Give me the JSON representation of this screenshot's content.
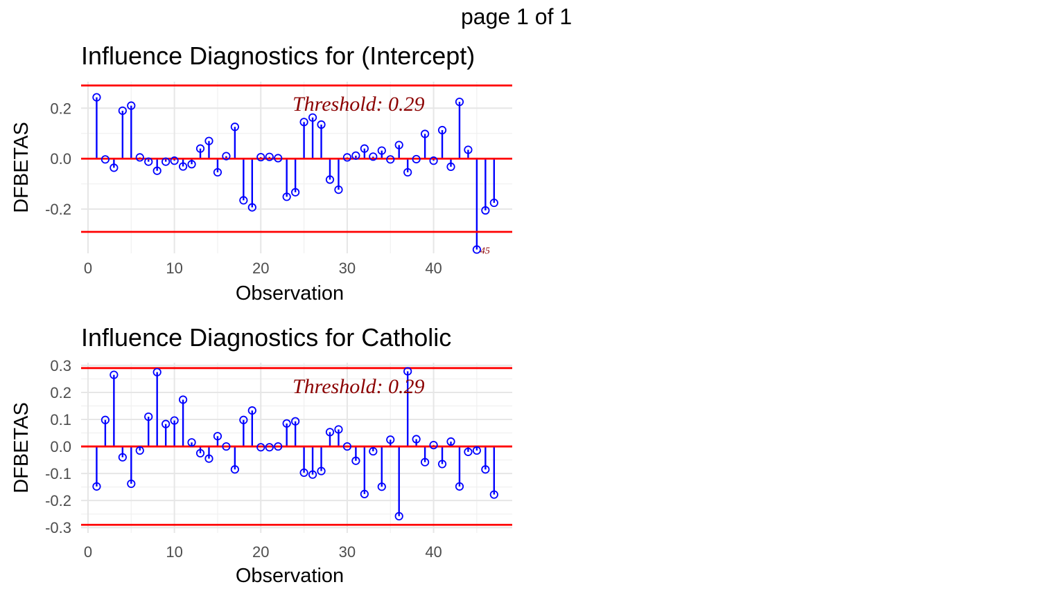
{
  "page_label": "page 1 of 1",
  "chart_data": [
    {
      "type": "lollipop",
      "title": "Influence Diagnostics for (Intercept)",
      "xlabel": "Observation",
      "ylabel": "DFBETAS",
      "xlim": [
        -0.8,
        49.1
      ],
      "ylim": [
        -0.375,
        0.305
      ],
      "x_ticks": [
        "0",
        "10",
        "20",
        "30",
        "40"
      ],
      "y_ticks": [
        "-0.2",
        "0.0",
        "0.2"
      ],
      "threshold": 0.29,
      "threshold_label": "Threshold: 0.29",
      "outlier_labels": [
        {
          "x": 45,
          "label": "45"
        }
      ],
      "colors": {
        "stem": "#0000ff",
        "threshold": "#ff0000"
      },
      "x": [
        1,
        2,
        3,
        4,
        5,
        6,
        7,
        8,
        9,
        10,
        11,
        12,
        13,
        14,
        15,
        16,
        17,
        18,
        19,
        20,
        21,
        22,
        23,
        24,
        25,
        26,
        27,
        28,
        29,
        30,
        31,
        32,
        33,
        34,
        35,
        36,
        37,
        38,
        39,
        40,
        41,
        42,
        43,
        44,
        45,
        46,
        47
      ],
      "values": [
        0.243,
        -0.003,
        -0.036,
        0.19,
        0.21,
        0.005,
        -0.012,
        -0.048,
        -0.012,
        -0.008,
        -0.031,
        -0.022,
        0.04,
        0.07,
        -0.054,
        0.01,
        0.126,
        -0.165,
        -0.193,
        0.006,
        0.007,
        0.002,
        -0.151,
        -0.133,
        0.145,
        0.163,
        0.135,
        -0.083,
        -0.123,
        0.005,
        0.012,
        0.04,
        0.008,
        0.032,
        -0.003,
        0.054,
        -0.054,
        -0.002,
        0.098,
        -0.008,
        0.113,
        -0.032,
        0.225,
        0.035,
        -0.36,
        -0.205,
        -0.175
      ]
    },
    {
      "type": "lollipop",
      "title": "Influence Diagnostics for Catholic",
      "xlabel": "Observation",
      "ylabel": "DFBETAS",
      "xlim": [
        -0.8,
        49.1
      ],
      "ylim": [
        -0.32,
        0.31
      ],
      "x_ticks": [
        "0",
        "10",
        "20",
        "30",
        "40"
      ],
      "y_ticks": [
        "-0.3",
        "-0.2",
        "-0.1",
        "0.0",
        "0.1",
        "0.2",
        "0.3"
      ],
      "threshold": 0.29,
      "threshold_label": "Threshold: 0.29",
      "outlier_labels": [],
      "colors": {
        "stem": "#0000ff",
        "threshold": "#ff0000"
      },
      "x": [
        1,
        2,
        3,
        4,
        5,
        6,
        7,
        8,
        9,
        10,
        11,
        12,
        13,
        14,
        15,
        16,
        17,
        18,
        19,
        20,
        21,
        22,
        23,
        24,
        25,
        26,
        27,
        28,
        29,
        30,
        31,
        32,
        33,
        34,
        35,
        36,
        37,
        38,
        39,
        40,
        41,
        42,
        43,
        44,
        45,
        46,
        47
      ],
      "values": [
        -0.148,
        0.098,
        0.265,
        -0.04,
        -0.138,
        -0.015,
        0.11,
        0.275,
        0.083,
        0.096,
        0.173,
        0.015,
        -0.025,
        -0.045,
        0.038,
        0,
        -0.085,
        0.098,
        0.133,
        -0.003,
        -0.003,
        0,
        0.085,
        0.093,
        -0.097,
        -0.104,
        -0.091,
        0.053,
        0.063,
        0,
        -0.053,
        -0.176,
        -0.018,
        -0.149,
        0.025,
        -0.258,
        0.278,
        0.027,
        -0.058,
        0.005,
        -0.065,
        0.018,
        -0.148,
        -0.02,
        -0.015,
        -0.085,
        -0.178
      ]
    }
  ]
}
